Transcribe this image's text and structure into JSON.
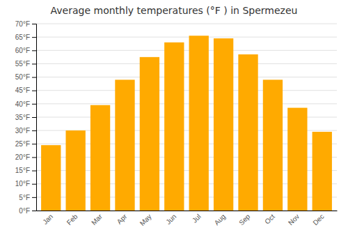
{
  "chart_data": {
    "type": "bar",
    "title": "Average monthly temperatures (°F ) in Spermezeu",
    "categories": [
      "Jan",
      "Feb",
      "Mar",
      "Apr",
      "May",
      "Jun",
      "Jul",
      "Aug",
      "Sep",
      "Oct",
      "Nov",
      "Dec"
    ],
    "values": [
      24.5,
      30.0,
      39.5,
      49.0,
      57.5,
      63.0,
      65.5,
      64.5,
      58.5,
      49.0,
      38.5,
      29.5
    ],
    "color": "#FFAA00",
    "ylim": [
      0,
      70
    ],
    "yticks": [
      {
        "value": 0,
        "label": "0°F"
      },
      {
        "value": 5,
        "label": "5°F"
      },
      {
        "value": 10,
        "label": "10°F"
      },
      {
        "value": 15,
        "label": "15°F"
      },
      {
        "value": 20,
        "label": "20°F"
      },
      {
        "value": 25,
        "label": "25°F"
      },
      {
        "value": 30,
        "label": "30°F"
      },
      {
        "value": 35,
        "label": "35°F"
      },
      {
        "value": 40,
        "label": "40°F"
      },
      {
        "value": 45,
        "label": "45°F"
      },
      {
        "value": 50,
        "label": "50°F"
      },
      {
        "value": 55,
        "label": "55°F"
      },
      {
        "value": 60,
        "label": "60°F"
      },
      {
        "value": 65,
        "label": "65°F"
      },
      {
        "value": 70,
        "label": "70°F"
      }
    ],
    "grid": true
  }
}
